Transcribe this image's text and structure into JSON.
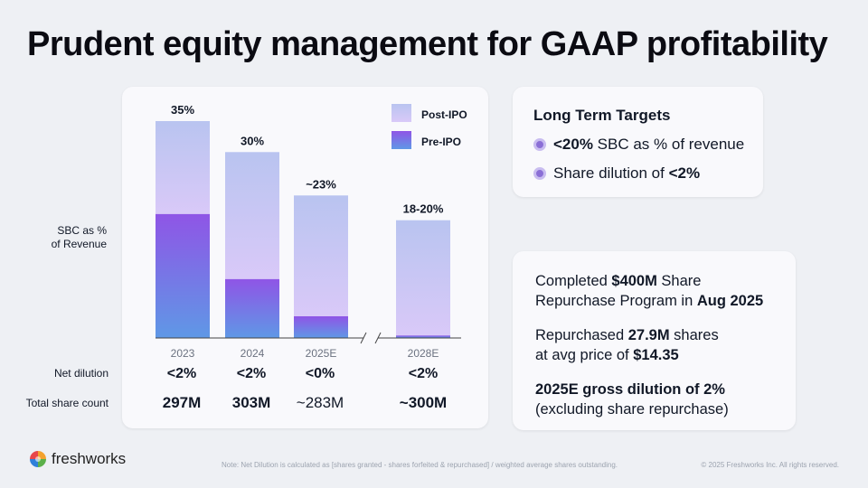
{
  "title": "Prudent equity management for GAAP profitability",
  "chart_data": {
    "type": "bar",
    "stacked": true,
    "categories": [
      "2023",
      "2024",
      "2025E",
      "2028E"
    ],
    "series": [
      {
        "name": "Pre-IPO",
        "values": [
          20,
          9.5,
          3.5,
          0.4
        ]
      },
      {
        "name": "Post-IPO",
        "values": [
          15,
          20.5,
          19.5,
          18.6
        ]
      }
    ],
    "totals": [
      35,
      30,
      23,
      19
    ],
    "total_labels": [
      "35%",
      "30%",
      "~23%",
      "18-20%"
    ],
    "ylabel": "SBC as % of Revenue",
    "ylim": [
      0,
      36
    ],
    "axis_break_between": [
      "2025E",
      "2028E"
    ],
    "legend": [
      "Post-IPO",
      "Pre-IPO"
    ],
    "colors": {
      "post_ipo": "#c5c0f3",
      "pre_ipo": "#8b5ee6"
    }
  },
  "labels": {
    "ylabel_line1": "SBC as %",
    "ylabel_line2": "of Revenue",
    "net_dilution": "Net dilution",
    "total_share_count": "Total share count"
  },
  "rows": {
    "net_dilution": [
      "<2%",
      "<2%",
      "<0%",
      "<2%"
    ],
    "share_count": [
      "297M",
      "303M",
      "~283M",
      "~300M"
    ]
  },
  "targets": {
    "title": "Long Term Targets",
    "item1_bold": "<20%",
    "item1_rest": " SBC as % of revenue",
    "item2_text": "Share dilution of ",
    "item2_bold": "<2%"
  },
  "facts": {
    "p1_a": "Completed ",
    "p1_b": "$400M",
    "p1_c": " Share",
    "p1_d": "Repurchase Program in ",
    "p1_e": "Aug 2025",
    "p2_a": "Repurchased ",
    "p2_b": "27.9M",
    "p2_c": " shares",
    "p2_d": "at avg price of ",
    "p2_e": "$14.35",
    "p3_a": "2025E gross dilution of 2%",
    "p3_b": "(excluding share repurchase)"
  },
  "footer": {
    "note": "Note: Net Dilution is calculated as [shares granted - shares forfeited & repurchased] / weighted average shares outstanding.",
    "copyright": "© 2025 Freshworks Inc. All rights reserved.",
    "logo": "freshworks"
  }
}
